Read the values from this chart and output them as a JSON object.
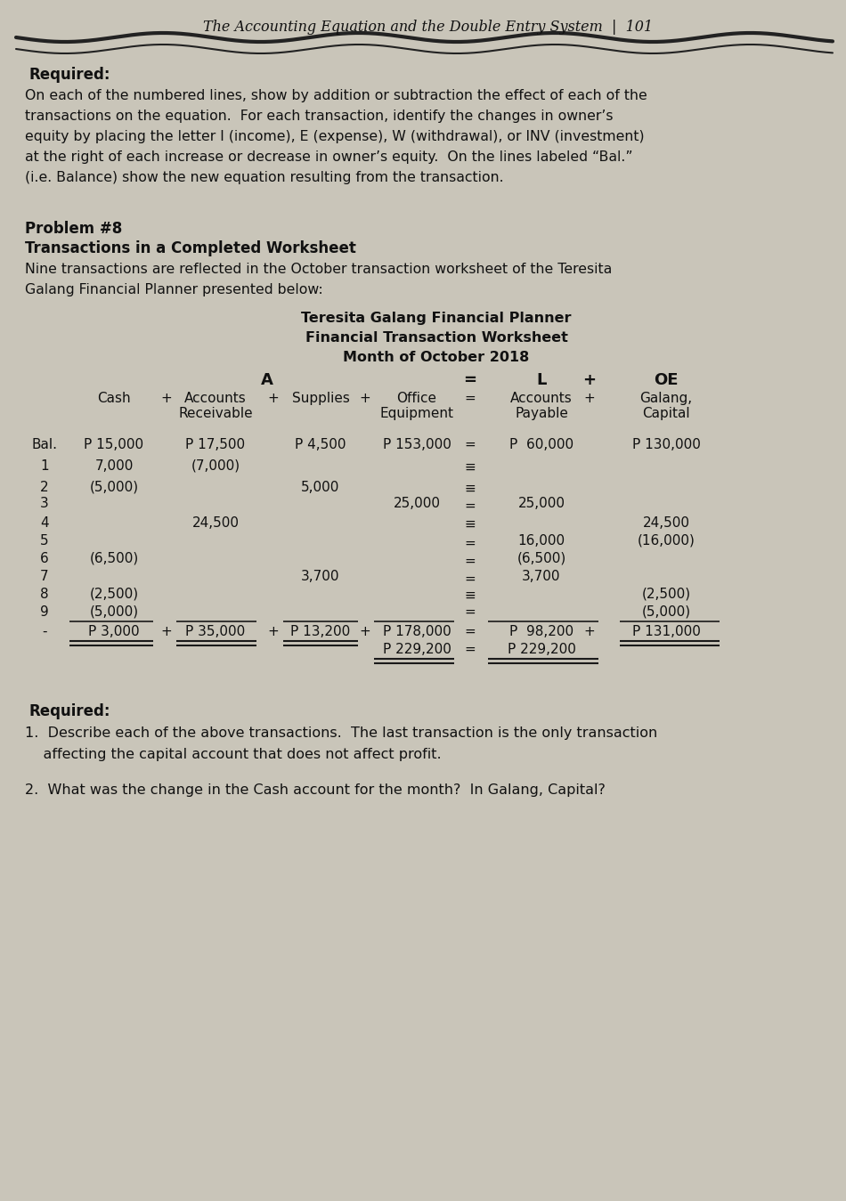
{
  "bg_color": "#c9c5b9",
  "page_title": "The Accounting Equation and the Double Entry System  |  101",
  "header_required": "Required:",
  "header_body": [
    "On each of the numbered lines, show by addition or subtraction the effect of each of the",
    "transactions on the equation.  For each transaction, identify the changes in owner’s",
    "equity by placing the letter I (income), E (expense), W (withdrawal), or INV (investment)",
    "at the right of each increase or decrease in owner’s equity.  On the lines labeled “Bal.”",
    "(i.e. Balance) show the new equation resulting from the transaction."
  ],
  "problem_title": "Problem #8",
  "problem_subtitle": "Transactions in a Completed Worksheet",
  "problem_intro1": "Nine transactions are reflected in the October transaction worksheet of the Teresita",
  "problem_intro2": "Galang Financial Planner presented below:",
  "ws_title1": "Teresita Galang Financial Planner",
  "ws_title2": "Financial Transaction Worksheet",
  "ws_title3": "Month of October 2018",
  "required_bottom": "Required:",
  "q1a": "1.  Describe each of the above transactions.  The last transaction is the only transaction",
  "q1b": "    affecting the capital account that does not affect profit.",
  "q2": "2.  What was the change in the Cash account for the month?  In Galang, Capital?"
}
